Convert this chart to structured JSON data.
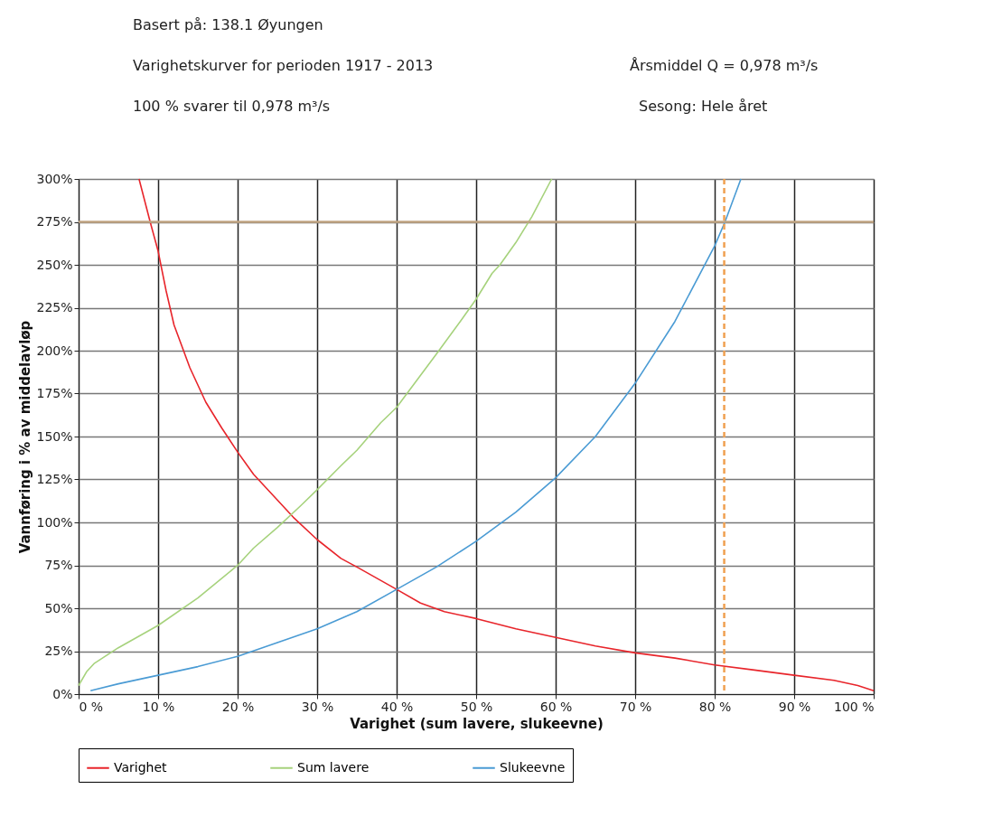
{
  "chart_data": {
    "type": "line",
    "title": "Basert på: 138.1  Øyungen",
    "annotations": [
      "Varighetskurver for perioden 1917 - 2013",
      "100 % svarer til 0,978 m³/s",
      "Årsmiddel Q = 0,978 m³/s",
      "Sesong: Hele året"
    ],
    "xlabel": "Varighet (sum lavere, slukeevne)",
    "ylabel": "Vannføring i % av middelavløp",
    "xlim": [
      0,
      100
    ],
    "ylim": [
      0,
      300
    ],
    "xticks": [
      {
        "value": 0,
        "label": "0 %"
      },
      {
        "value": 10,
        "label": "10 %"
      },
      {
        "value": 20,
        "label": "20 %"
      },
      {
        "value": 30,
        "label": "30 %"
      },
      {
        "value": 40,
        "label": "40 %"
      },
      {
        "value": 50,
        "label": "50 %"
      },
      {
        "value": 60,
        "label": "60 %"
      },
      {
        "value": 70,
        "label": "70 %"
      },
      {
        "value": 80,
        "label": "80 %"
      },
      {
        "value": 90,
        "label": "90 %"
      },
      {
        "value": 100,
        "label": "100 %"
      }
    ],
    "yticks": [
      {
        "value": 0,
        "label": "0%"
      },
      {
        "value": 25,
        "label": "25%"
      },
      {
        "value": 50,
        "label": "50%"
      },
      {
        "value": 75,
        "label": "75%"
      },
      {
        "value": 100,
        "label": "100%"
      },
      {
        "value": 125,
        "label": "125%"
      },
      {
        "value": 150,
        "label": "150%"
      },
      {
        "value": 175,
        "label": "175%"
      },
      {
        "value": 200,
        "label": "200%"
      },
      {
        "value": 225,
        "label": "225%"
      },
      {
        "value": 250,
        "label": "250%"
      },
      {
        "value": 275,
        "label": "275%"
      },
      {
        "value": 300,
        "label": "300%"
      }
    ],
    "grid": true,
    "legend": "bottom",
    "marker": "none",
    "line_style": "solid",
    "ref_lines": [
      {
        "axis": "y",
        "value": 275,
        "color": "#c0a482",
        "line_style": "solid"
      },
      {
        "axis": "x",
        "value": 81.2,
        "color": "#f0a050",
        "line_style": "dashed"
      }
    ],
    "series": [
      {
        "name": "Varighet",
        "color": "#e8252b",
        "x": [
          7.6,
          9,
          10,
          11,
          12,
          14,
          16,
          18,
          20,
          22,
          25,
          27,
          30,
          33,
          35,
          40,
          43,
          46,
          50,
          55,
          60,
          65,
          70,
          75,
          80,
          85,
          90,
          95,
          98,
          100
        ],
        "values": [
          300,
          275,
          258,
          235,
          215,
          190,
          170,
          155,
          141,
          128,
          113,
          103,
          90,
          79,
          74,
          61,
          53,
          48,
          44,
          38,
          33,
          28,
          24,
          21,
          17,
          14,
          11,
          8,
          5,
          2
        ]
      },
      {
        "name": "Sum lavere",
        "color": "#a6d27c",
        "x": [
          0,
          1,
          2,
          5,
          10,
          15,
          20,
          22,
          25,
          28,
          30,
          33,
          35,
          38,
          40,
          45,
          48,
          50,
          52,
          53,
          55,
          57,
          59.5
        ],
        "values": [
          5,
          13,
          18,
          27,
          40,
          56,
          75,
          85,
          97,
          110,
          119,
          133,
          142,
          158,
          167,
          198,
          217,
          230,
          245,
          250,
          263,
          278,
          300
        ]
      },
      {
        "name": "Slukeevne",
        "color": "#4a9bd4",
        "x": [
          1.5,
          5,
          10,
          15,
          20,
          25,
          30,
          35,
          40,
          45,
          50,
          55,
          60,
          65,
          70,
          75,
          80,
          81.3,
          83.3
        ],
        "values": [
          2,
          6,
          11,
          16,
          22,
          30,
          38,
          48,
          61,
          74,
          89,
          106,
          126,
          150,
          181,
          217,
          261,
          275,
          300
        ]
      }
    ]
  }
}
